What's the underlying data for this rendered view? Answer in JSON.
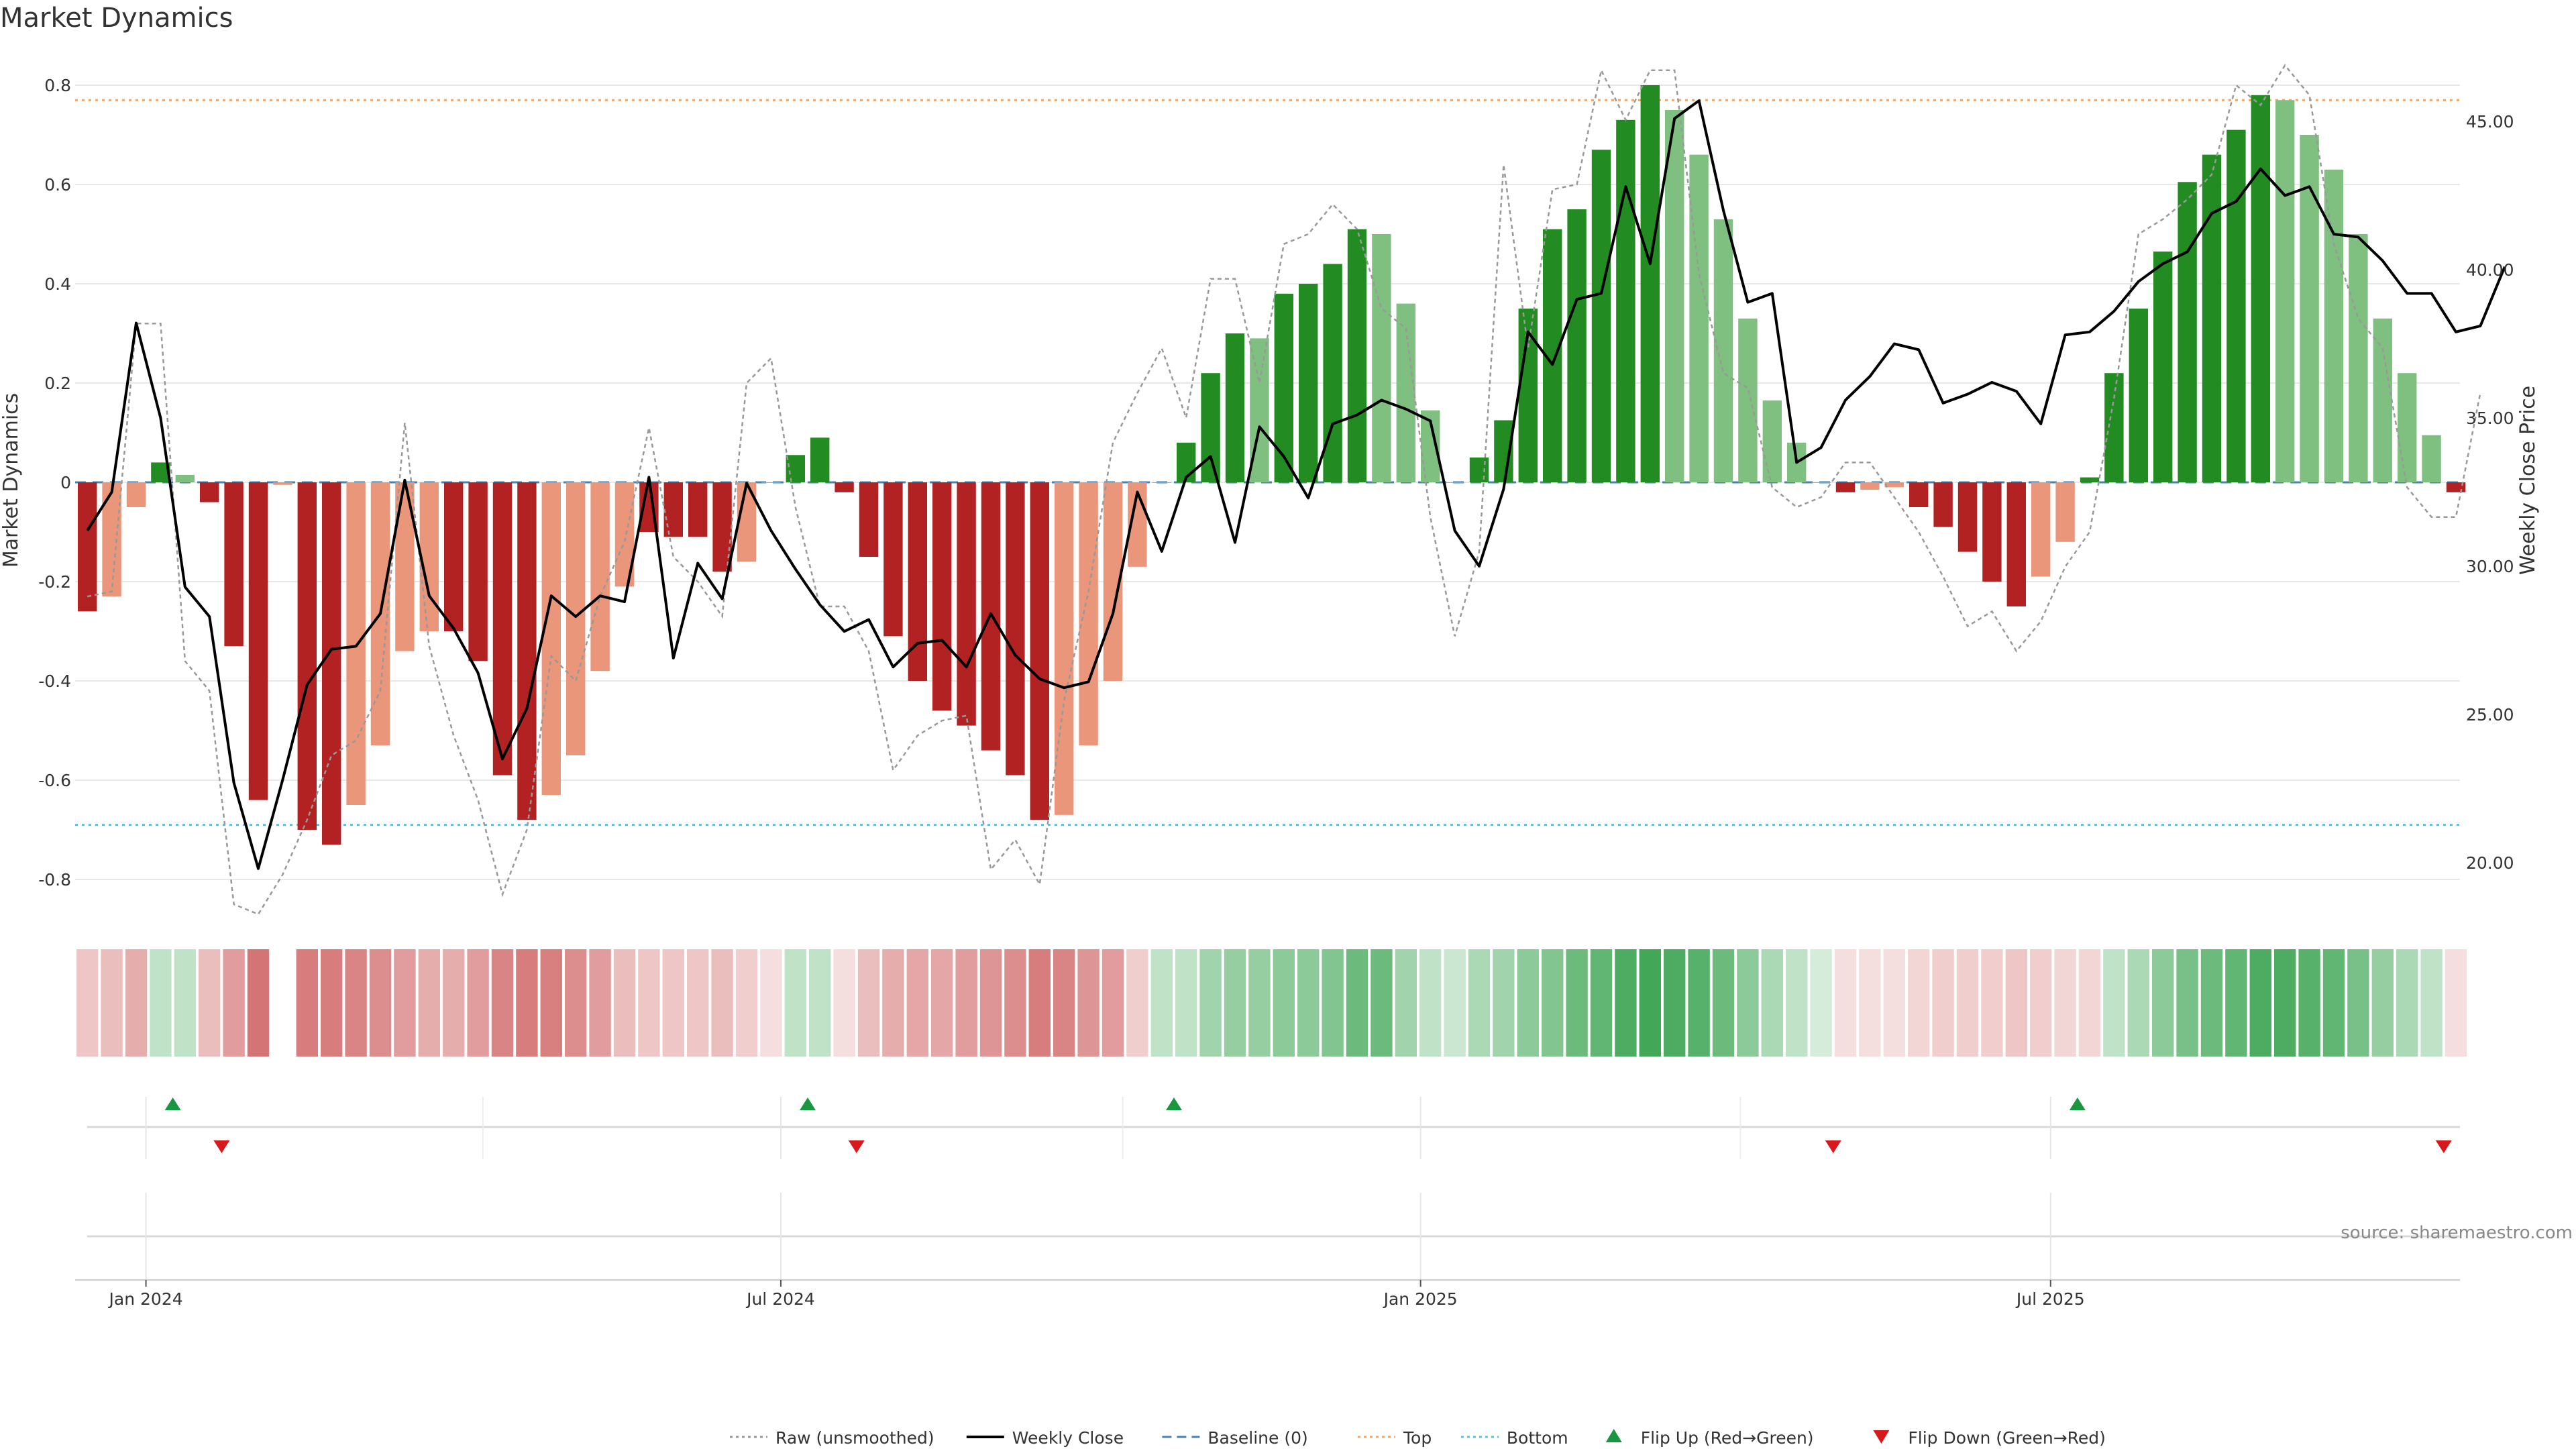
{
  "chart_data": {
    "type": "bar",
    "title": "Market Dynamics",
    "ylabel": "Market Dynamics",
    "y2label": "Weekly Close Price",
    "ylim": [
      -0.86,
      0.86
    ],
    "y2lim": [
      18.5,
      48
    ],
    "yticks": [
      "-0.8",
      "-0.6",
      "-0.4",
      "-0.2",
      "0",
      "0.2",
      "0.4",
      "0.6",
      "0.8"
    ],
    "y2ticks": [
      "20.00",
      "25.00",
      "30.00",
      "35.00",
      "40.00",
      "45.00"
    ],
    "xticks": [
      {
        "label": "Jan 2024",
        "index": 2.4
      },
      {
        "label": "Jul 2024",
        "index": 28.4
      },
      {
        "label": "Jan 2025",
        "index": 54.6
      },
      {
        "label": "Jul 2025",
        "index": 80.4
      }
    ],
    "grid": true,
    "legend_position": "bottom",
    "top_line": 0.77,
    "bottom_line": -0.69,
    "baseline": 0,
    "colors": {
      "strong_red": "#b22222",
      "weak_red": "#e9967a",
      "strong_green": "#228b22",
      "weak_green": "#7fbf7f",
      "weekly_close": "#000000",
      "raw": "#999999",
      "baseline": "#4682b4",
      "top": "#f4a460",
      "bottom": "#5bc0de",
      "flip_up": "#1a9641",
      "flip_down": "#d7191c",
      "heat_red": "#cd5c5c",
      "heat_green": "#2e9e46"
    },
    "series": [
      {
        "name": "Market Dynamics",
        "values": [
          -0.26,
          -0.23,
          -0.05,
          0.04,
          0.015,
          -0.04,
          -0.33,
          -0.64,
          -0.005,
          -0.7,
          -0.73,
          -0.65,
          -0.53,
          -0.34,
          -0.3,
          -0.3,
          -0.36,
          -0.59,
          -0.68,
          -0.63,
          -0.55,
          -0.38,
          -0.21,
          -0.1,
          -0.11,
          -0.11,
          -0.18,
          -0.16,
          0.0,
          0.055,
          0.09,
          -0.02,
          -0.15,
          -0.31,
          -0.4,
          -0.46,
          -0.49,
          -0.54,
          -0.59,
          -0.68,
          -0.67,
          -0.53,
          -0.4,
          -0.17,
          0.0,
          0.08,
          0.22,
          0.3,
          0.29,
          0.38,
          0.4,
          0.44,
          0.51,
          0.5,
          0.36,
          0.145,
          0.0,
          0.05,
          0.125,
          0.35,
          0.51,
          0.55,
          0.67,
          0.73,
          0.8,
          0.75,
          0.66,
          0.53,
          0.33,
          0.165,
          0.08,
          0.0,
          -0.02,
          -0.015,
          -0.01,
          -0.05,
          -0.09,
          -0.14,
          -0.2,
          -0.25,
          -0.19,
          -0.12,
          0.01,
          0.22,
          0.35,
          0.465,
          0.605,
          0.66,
          0.71,
          0.78,
          0.77,
          0.7,
          0.63,
          0.5,
          0.33,
          0.22,
          0.095,
          -0.02
        ],
        "strength": [
          "s",
          "w",
          "w",
          "s",
          "w",
          "s",
          "s",
          "s",
          "w",
          "s",
          "s",
          "w",
          "w",
          "w",
          "w",
          "s",
          "s",
          "s",
          "s",
          "w",
          "w",
          "w",
          "w",
          "s",
          "s",
          "s",
          "s",
          "w",
          "w",
          "s",
          "s",
          "s",
          "s",
          "s",
          "s",
          "s",
          "s",
          "s",
          "s",
          "s",
          "w",
          "w",
          "w",
          "w",
          "w",
          "s",
          "s",
          "s",
          "w",
          "s",
          "s",
          "s",
          "s",
          "w",
          "w",
          "w",
          "w",
          "s",
          "s",
          "s",
          "s",
          "s",
          "s",
          "s",
          "s",
          "w",
          "w",
          "w",
          "w",
          "w",
          "w",
          "w",
          "s",
          "w",
          "w",
          "s",
          "s",
          "s",
          "s",
          "s",
          "w",
          "w",
          "s",
          "s",
          "s",
          "s",
          "s",
          "s",
          "s",
          "s",
          "w",
          "w",
          "w",
          "w",
          "w",
          "w",
          "w",
          "s"
        ]
      },
      {
        "name": "Weekly Close",
        "values": [
          31.2,
          32.5,
          38.2,
          35.0,
          29.3,
          28.3,
          22.7,
          19.8,
          22.8,
          26.0,
          27.2,
          27.3,
          28.4,
          32.9,
          29.0,
          27.9,
          26.4,
          23.5,
          25.2,
          29.0,
          28.3,
          29.0,
          28.8,
          33.0,
          26.9,
          30.1,
          28.9,
          32.8,
          31.2,
          29.9,
          28.7,
          27.8,
          28.2,
          26.6,
          27.4,
          27.5,
          26.6,
          28.4,
          27.0,
          26.2,
          25.9,
          26.1,
          28.4,
          32.5,
          30.5,
          33.0,
          33.7,
          30.8,
          34.7,
          33.7,
          32.3,
          34.8,
          35.1,
          35.6,
          35.3,
          34.9,
          31.2,
          30.0,
          32.6,
          37.9,
          36.8,
          39.0,
          39.2,
          42.8,
          40.2,
          45.1,
          45.7,
          42.0,
          38.9,
          39.2,
          33.5,
          34.0,
          35.6,
          36.4,
          37.5,
          37.3,
          35.5,
          35.8,
          36.2,
          35.9,
          34.8,
          37.8,
          37.9,
          38.6,
          39.6,
          40.2,
          40.6,
          41.9,
          42.3,
          43.4,
          42.5,
          42.8,
          41.2,
          41.1,
          40.3,
          39.2,
          39.2,
          37.9,
          38.1,
          40.1
        ]
      },
      {
        "name": "Raw (unsmoothed)",
        "values": [
          -0.23,
          -0.22,
          0.32,
          0.32,
          -0.36,
          -0.42,
          -0.85,
          -0.87,
          -0.79,
          -0.68,
          -0.55,
          -0.52,
          -0.42,
          0.12,
          -0.33,
          -0.51,
          -0.64,
          -0.83,
          -0.7,
          -0.35,
          -0.4,
          -0.23,
          -0.12,
          0.11,
          -0.15,
          -0.2,
          -0.27,
          0.2,
          0.25,
          -0.05,
          -0.25,
          -0.25,
          -0.34,
          -0.58,
          -0.51,
          -0.48,
          -0.47,
          -0.78,
          -0.72,
          -0.81,
          -0.44,
          -0.22,
          0.08,
          0.18,
          0.27,
          0.13,
          0.41,
          0.41,
          0.2,
          0.48,
          0.5,
          0.56,
          0.51,
          0.35,
          0.31,
          -0.07,
          -0.31,
          -0.14,
          0.64,
          0.27,
          0.59,
          0.6,
          0.83,
          0.73,
          0.83,
          0.83,
          0.42,
          0.22,
          0.19,
          -0.01,
          -0.05,
          -0.03,
          0.04,
          0.04,
          -0.03,
          -0.1,
          -0.19,
          -0.29,
          -0.26,
          -0.34,
          -0.28,
          -0.17,
          -0.1,
          0.17,
          0.5,
          0.53,
          0.57,
          0.62,
          0.8,
          0.76,
          0.84,
          0.78,
          0.48,
          0.33,
          0.27,
          -0.01,
          -0.07,
          -0.07,
          0.18
        ]
      }
    ],
    "heatstrip": [
      0.35,
      0.4,
      0.5,
      0.3,
      0.3,
      0.4,
      0.6,
      0.85,
      0.0,
      0.8,
      0.8,
      0.75,
      0.7,
      0.6,
      0.5,
      0.5,
      0.6,
      0.75,
      0.8,
      0.78,
      0.7,
      0.6,
      0.4,
      0.35,
      0.35,
      0.35,
      0.4,
      0.3,
      0.2,
      0.3,
      0.3,
      0.2,
      0.4,
      0.5,
      0.55,
      0.55,
      0.6,
      0.65,
      0.7,
      0.8,
      0.75,
      0.65,
      0.6,
      0.3,
      0.3,
      0.3,
      0.45,
      0.5,
      0.5,
      0.55,
      0.55,
      0.6,
      0.7,
      0.7,
      0.45,
      0.3,
      0.25,
      0.4,
      0.45,
      0.55,
      0.6,
      0.7,
      0.75,
      0.85,
      0.9,
      0.85,
      0.8,
      0.7,
      0.55,
      0.4,
      0.3,
      0.2,
      0.2,
      0.2,
      0.2,
      0.25,
      0.3,
      0.3,
      0.3,
      0.35,
      0.3,
      0.25,
      0.25,
      0.3,
      0.4,
      0.55,
      0.65,
      0.7,
      0.75,
      0.85,
      0.85,
      0.8,
      0.75,
      0.65,
      0.5,
      0.4,
      0.3,
      0.2
    ],
    "heatstrip_sign": [
      -1,
      -1,
      -1,
      1,
      1,
      -1,
      -1,
      -1,
      0,
      -1,
      -1,
      -1,
      -1,
      -1,
      -1,
      -1,
      -1,
      -1,
      -1,
      -1,
      -1,
      -1,
      -1,
      -1,
      -1,
      -1,
      -1,
      -1,
      -1,
      1,
      1,
      -1,
      -1,
      -1,
      -1,
      -1,
      -1,
      -1,
      -1,
      -1,
      -1,
      -1,
      -1,
      -1,
      1,
      1,
      1,
      1,
      1,
      1,
      1,
      1,
      1,
      1,
      1,
      1,
      1,
      1,
      1,
      1,
      1,
      1,
      1,
      1,
      1,
      1,
      1,
      1,
      1,
      1,
      1,
      1,
      -1,
      -1,
      -1,
      -1,
      -1,
      -1,
      -1,
      -1,
      -1,
      -1,
      -1,
      1,
      1,
      1,
      1,
      1,
      1,
      1,
      1,
      1,
      1,
      1,
      1,
      1,
      1,
      -1
    ],
    "flips_up": [
      3.5,
      29.5,
      44.5,
      81.5
    ],
    "flips_down": [
      5.5,
      31.5,
      71.5,
      96.5
    ],
    "legend": [
      {
        "label": "Raw (unsmoothed)",
        "symbol": "dotted",
        "color": "#999999"
      },
      {
        "label": "Weekly Close",
        "symbol": "solid",
        "color": "#000000"
      },
      {
        "label": "Baseline (0)",
        "symbol": "dashed",
        "color": "#4682b4"
      },
      {
        "label": "Top",
        "symbol": "dotted",
        "color": "#f4a460"
      },
      {
        "label": "Bottom",
        "symbol": "dotted",
        "color": "#5bc0de"
      },
      {
        "label": "Flip Up (Red→Green)",
        "symbol": "triangle-up",
        "color": "#1a9641"
      },
      {
        "label": "Flip Down (Green→Red)",
        "symbol": "triangle-down",
        "color": "#d7191c"
      }
    ],
    "source": "source: sharemaestro.com"
  }
}
